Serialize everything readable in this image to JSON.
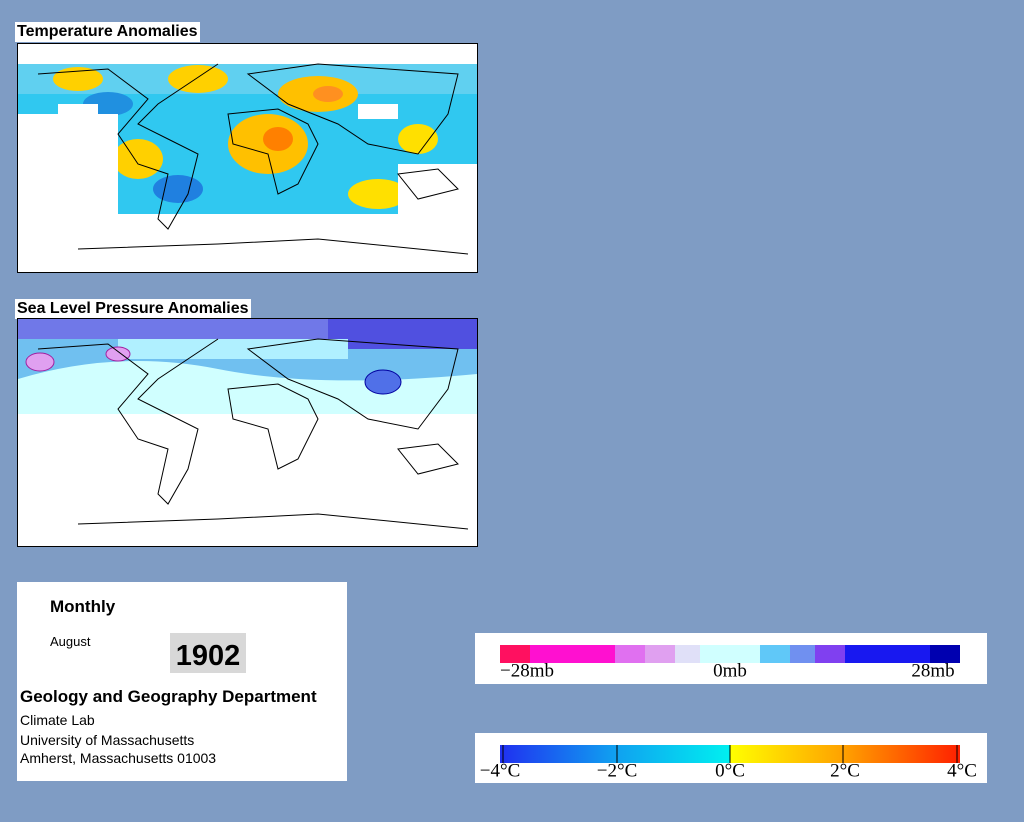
{
  "temperature_map": {
    "title": "Temperature Anomalies"
  },
  "pressure_map": {
    "title": "Sea Level Pressure Anomalies"
  },
  "info": {
    "period": "Monthly",
    "month": "August",
    "year": "1902",
    "department": "Geology and Geography Department",
    "lines": [
      "Climate Lab",
      "University of Massachusetts",
      "Amherst, Massachusetts 01003"
    ]
  },
  "pressure_scale": {
    "labels": [
      "−28mb",
      "0mb",
      "28mb"
    ]
  },
  "temperature_scale": {
    "labels": [
      "−4°C",
      "−2°C",
      "0°C",
      "2°C",
      "4°C"
    ]
  }
}
